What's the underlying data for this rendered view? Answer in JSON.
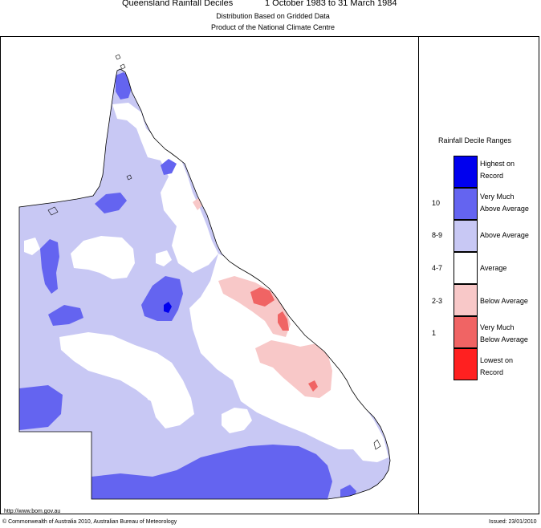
{
  "header": {
    "title": "Queensland Rainfall Deciles",
    "period": "1 October 1983 to 31 March 1984",
    "subtitle1": "Distribution Based on Gridded Data",
    "subtitle2": "Product of the National Climate Centre"
  },
  "legend": {
    "title": "Rainfall Decile Ranges",
    "items": [
      {
        "line1": "Highest on",
        "line2": "Record",
        "decile": "",
        "color": "#0000ee"
      },
      {
        "line1": "Very Much",
        "line2": "Above Average",
        "decile": "10",
        "color": "#6464f0"
      },
      {
        "line1": "Above Average",
        "line2": "",
        "decile": "8-9",
        "color": "#c8c8f4"
      },
      {
        "line1": "Average",
        "line2": "",
        "decile": "4-7",
        "color": "#ffffff"
      },
      {
        "line1": "Below Average",
        "line2": "",
        "decile": "2-3",
        "color": "#f8c8c8"
      },
      {
        "line1": "Very Much",
        "line2": "Below Average",
        "decile": "1",
        "color": "#f06464"
      },
      {
        "line1": "Lowest on",
        "line2": "Record",
        "decile": "",
        "color": "#ff2020"
      }
    ]
  },
  "footer": {
    "url": "http://www.bom.gov.au",
    "copyright": "© Commonwealth of Australia 2010, Australian Bureau of Meteorology",
    "issued": "Issued: 23/01/2010"
  }
}
